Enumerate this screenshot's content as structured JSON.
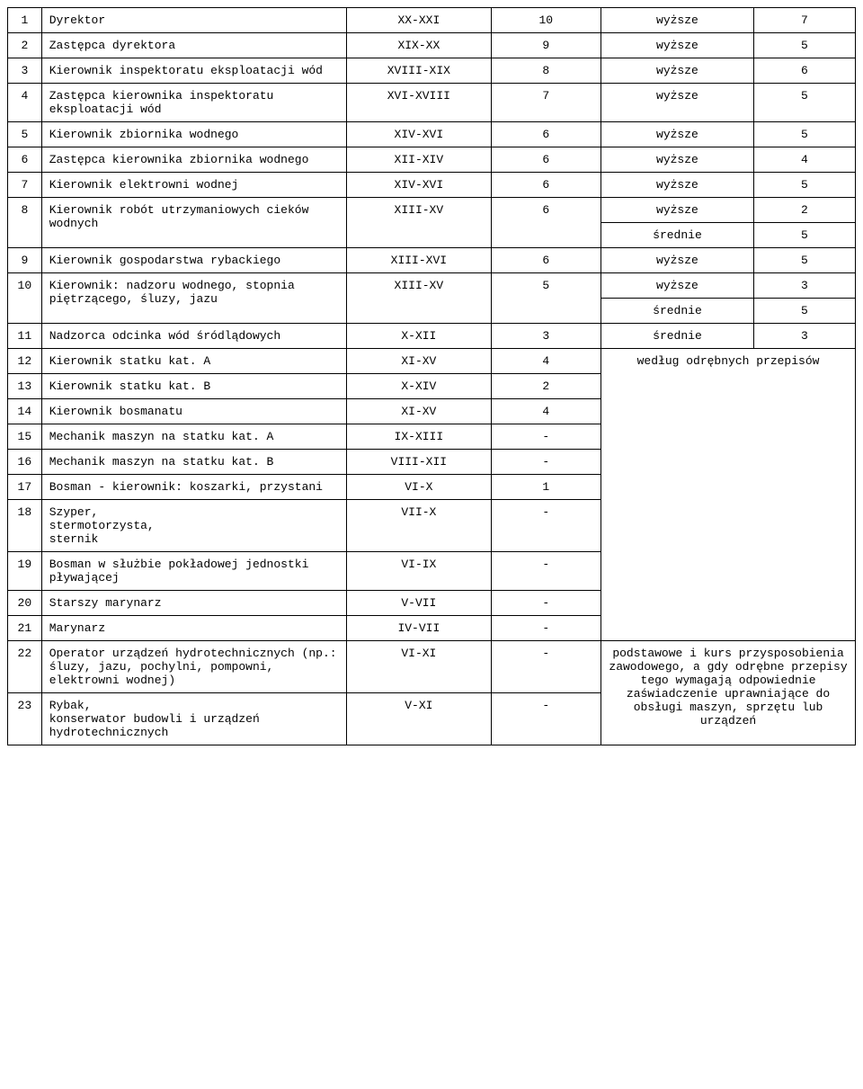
{
  "colors": {
    "border": "#000000",
    "background": "#ffffff",
    "text": "#000000"
  },
  "font": {
    "family": "Courier New",
    "size_pt": 10
  },
  "column_widths_pct": [
    4,
    36,
    17,
    13,
    18,
    12
  ],
  "rows": [
    {
      "num": "1",
      "title": "Dyrektor",
      "cat": "XX-XXI",
      "grade": "10",
      "edu": "wyższe",
      "exp": "7"
    },
    {
      "num": "2",
      "title": "Zastępca dyrektora",
      "cat": "XIX-XX",
      "grade": "9",
      "edu": "wyższe",
      "exp": "5"
    },
    {
      "num": "3",
      "title": "Kierownik inspektoratu eksploatacji wód",
      "cat": "XVIII-XIX",
      "grade": "8",
      "edu": "wyższe",
      "exp": "6"
    },
    {
      "num": "4",
      "title": "Zastępca kierownika inspektoratu eksploatacji wód",
      "cat": "XVI-XVIII",
      "grade": "7",
      "edu": "wyższe",
      "exp": "5"
    },
    {
      "num": "5",
      "title": "Kierownik zbiornika wodnego",
      "cat": "XIV-XVI",
      "grade": "6",
      "edu": "wyższe",
      "exp": "5"
    },
    {
      "num": "6",
      "title": "Zastępca kierownika zbiornika wodnego",
      "cat": "XII-XIV",
      "grade": "6",
      "edu": "wyższe",
      "exp": "4"
    },
    {
      "num": "7",
      "title": "Kierownik elektrowni wodnej",
      "cat": "XIV-XVI",
      "grade": "6",
      "edu": "wyższe",
      "exp": "5"
    },
    {
      "num": "8",
      "title": "Kierownik robót utrzymaniowych cieków wodnych",
      "cat": "XIII-XV",
      "grade": "6",
      "edu": "wyższe",
      "exp": "2",
      "edu2": "średnie",
      "exp2": "5"
    },
    {
      "num": "9",
      "title": "Kierownik gospodarstwa rybackiego",
      "cat": "XIII-XVI",
      "grade": "6",
      "edu": "wyższe",
      "exp": "5"
    },
    {
      "num": "10",
      "title": "Kierownik: nadzoru wodnego, stopnia piętrzącego, śluzy, jazu",
      "cat": "XIII-XV",
      "grade": "5",
      "edu": "wyższe",
      "exp": "3",
      "edu2": "średnie",
      "exp2": "5"
    },
    {
      "num": "11",
      "title": "Nadzorca odcinka wód śródlądowych",
      "cat": "X-XII",
      "grade": "3",
      "edu": "średnie",
      "exp": "3"
    },
    {
      "num": "12",
      "title": "Kierownik statku kat. A",
      "cat": "XI-XV",
      "grade": "4",
      "edu_wide": "według odrębnych przepisów",
      "edu_wide_rowspan": 10
    },
    {
      "num": "13",
      "title": "Kierownik statku kat. B",
      "cat": "X-XIV",
      "grade": "2"
    },
    {
      "num": "14",
      "title": "Kierownik bosmanatu",
      "cat": "XI-XV",
      "grade": "4"
    },
    {
      "num": "15",
      "title": "Mechanik maszyn na statku kat. A",
      "cat": "IX-XIII",
      "grade": "-"
    },
    {
      "num": "16",
      "title": "Mechanik maszyn na statku kat. B",
      "cat": "VIII-XII",
      "grade": "-"
    },
    {
      "num": "17",
      "title": "Bosman - kierownik: koszarki, przystani",
      "cat": "VI-X",
      "grade": "1"
    },
    {
      "num": "18",
      "title": "Szyper,\nstermotorzysta,\nsternik",
      "cat": "VII-X",
      "grade": "-"
    },
    {
      "num": "19",
      "title": "Bosman w służbie pokładowej jednostki pływającej",
      "cat": "VI-IX",
      "grade": "-"
    },
    {
      "num": "20",
      "title": "Starszy marynarz",
      "cat": "V-VII",
      "grade": "-"
    },
    {
      "num": "21",
      "title": "Marynarz",
      "cat": "IV-VII",
      "grade": "-"
    },
    {
      "num": "22",
      "title": "Operator urządzeń hydrotechnicznych (np.: śluzy, jazu, pochylni, pompowni, elektrowni wodnej)",
      "cat": "VI-XI",
      "grade": "-",
      "edu_wide": "podstawowe i kurs przysposobienia zawodowego, a gdy odrębne przepisy tego wymagają odpowiednie zaświadczenie uprawniające do obsługi maszyn, sprzętu lub urządzeń",
      "edu_wide_rowspan": 2
    },
    {
      "num": "23",
      "title": "Rybak,\nkonserwator budowli i urządzeń hydrotechnicznych",
      "cat": "V-XI",
      "grade": "-"
    }
  ]
}
